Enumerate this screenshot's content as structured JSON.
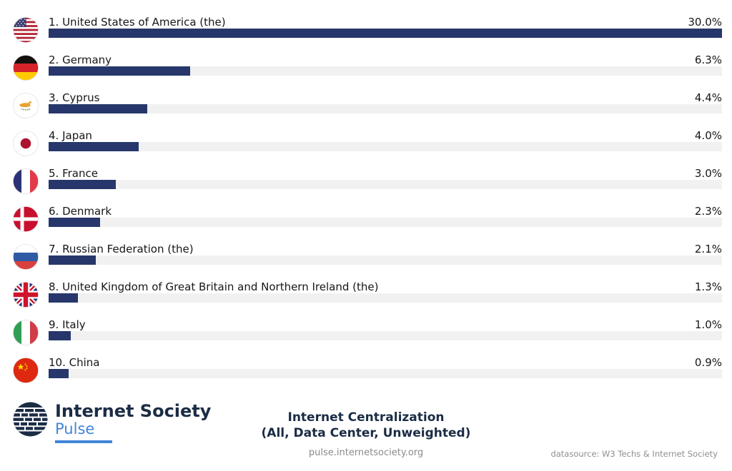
{
  "chart_data": {
    "type": "bar",
    "orientation": "horizontal",
    "title": "Internet Centralization",
    "subtitle": "(All, Data Center, Unweighted)",
    "unit": "%",
    "value_axis_max": 30.0,
    "max_value": 30.0,
    "bar_color": "#27376B",
    "track_color": "#F1F1F1",
    "legend": "none",
    "grid": "off",
    "categories": [
      "United States of America (the)",
      "Germany",
      "Cyprus",
      "Japan",
      "France",
      "Denmark",
      "Russian Federation (the)",
      "United Kingdom of Great Britain and Northern Ireland (the)",
      "Italy",
      "China"
    ],
    "values": [
      30.0,
      6.3,
      4.4,
      4.0,
      3.0,
      2.3,
      2.1,
      1.3,
      1.0,
      0.9
    ],
    "rows": [
      {
        "rank": 1,
        "label": "1. United States of America (the)",
        "value": 30.0,
        "value_label": "30.0%",
        "flag_icon": "flag-united-states"
      },
      {
        "rank": 2,
        "label": "2. Germany",
        "value": 6.3,
        "value_label": "6.3%",
        "flag_icon": "flag-germany"
      },
      {
        "rank": 3,
        "label": "3. Cyprus",
        "value": 4.4,
        "value_label": "4.4%",
        "flag_icon": "flag-cyprus"
      },
      {
        "rank": 4,
        "label": "4. Japan",
        "value": 4.0,
        "value_label": "4.0%",
        "flag_icon": "flag-japan"
      },
      {
        "rank": 5,
        "label": "5. France",
        "value": 3.0,
        "value_label": "3.0%",
        "flag_icon": "flag-france"
      },
      {
        "rank": 6,
        "label": "6. Denmark",
        "value": 2.3,
        "value_label": "2.3%",
        "flag_icon": "flag-denmark"
      },
      {
        "rank": 7,
        "label": "7. Russian Federation (the)",
        "value": 2.1,
        "value_label": "2.1%",
        "flag_icon": "flag-russia"
      },
      {
        "rank": 8,
        "label": "8. United Kingdom of Great Britain and Northern Ireland (the)",
        "value": 1.3,
        "value_label": "1.3%",
        "flag_icon": "flag-united-kingdom"
      },
      {
        "rank": 9,
        "label": "9. Italy",
        "value": 1.0,
        "value_label": "1.0%",
        "flag_icon": "flag-italy"
      },
      {
        "rank": 10,
        "label": "10. China",
        "value": 0.9,
        "value_label": "0.9%",
        "flag_icon": "flag-china"
      }
    ]
  },
  "footer": {
    "logo_title": "Internet Society",
    "logo_subtitle": "Pulse",
    "title_line1": "Internet Centralization",
    "title_line2": "(All, Data Center, Unweighted)",
    "website": "pulse.internetsociety.org",
    "datasource": "datasource: W3 Techs & Internet Society"
  },
  "colors": {
    "bar": "#27376B",
    "track": "#F1F1F1",
    "navy_text": "#1B2C45",
    "pulse_blue": "#4285D8",
    "gray_text": "#8A8A8A"
  }
}
